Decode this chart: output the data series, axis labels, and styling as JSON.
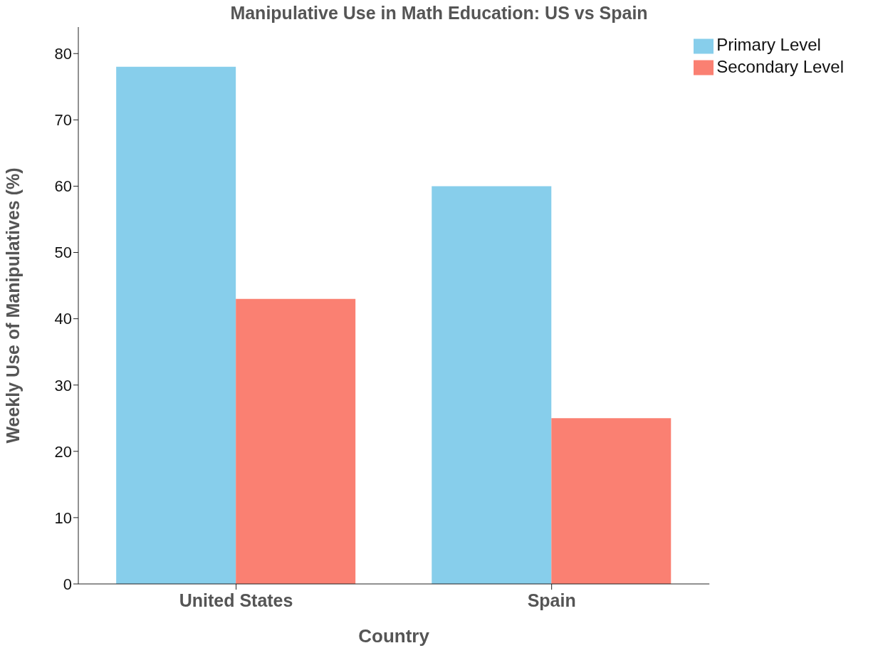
{
  "chart_data": {
    "type": "bar",
    "title": "Manipulative Use in Math Education: US vs Spain",
    "xlabel": "Country",
    "ylabel": "Weekly Use of Manipulatives (%)",
    "categories": [
      "United States",
      "Spain"
    ],
    "series": [
      {
        "name": "Primary Level",
        "color": "#87ceeb",
        "values": [
          78,
          60
        ]
      },
      {
        "name": "Secondary Level",
        "color": "#fa8072",
        "values": [
          43,
          25
        ]
      }
    ],
    "ylim": [
      0,
      84
    ],
    "yticks": [
      0,
      10,
      20,
      30,
      40,
      50,
      60,
      70,
      80
    ],
    "legend": "top right"
  }
}
